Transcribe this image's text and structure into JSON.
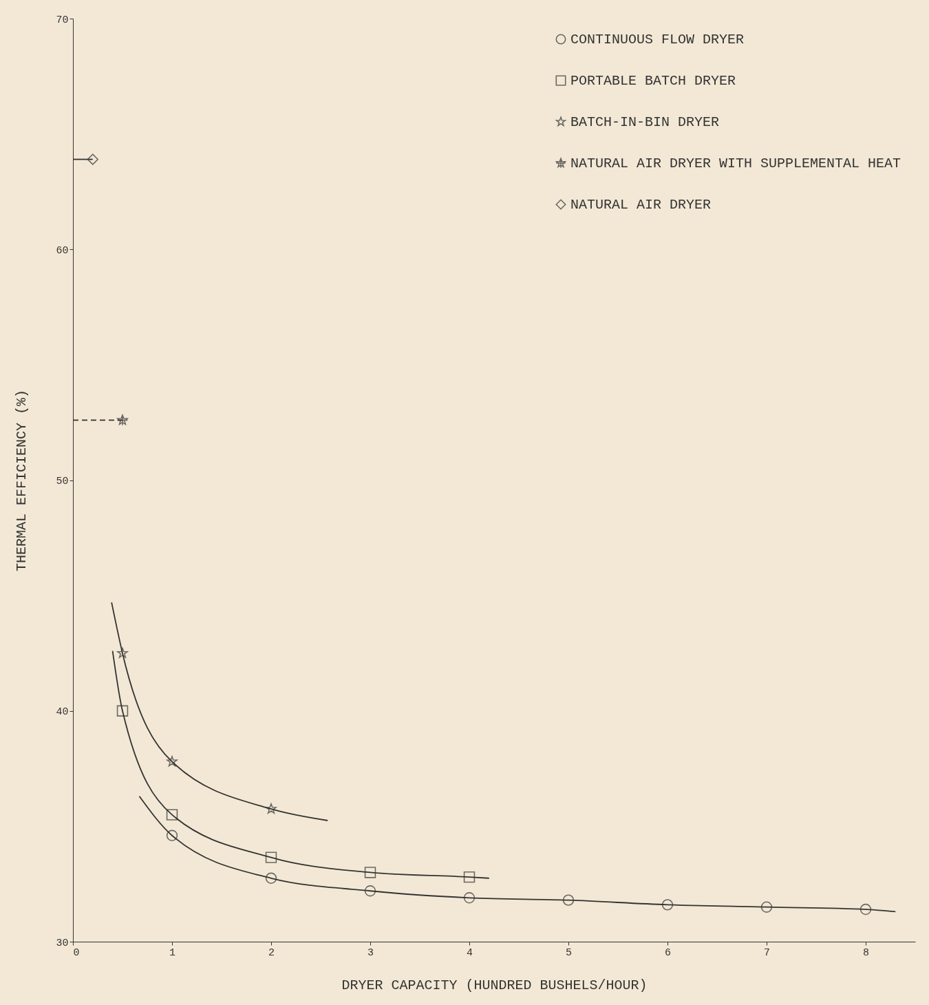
{
  "chart_data": {
    "type": "scatter",
    "xlabel": "DRYER CAPACITY (HUNDRED BUSHELS/HOUR)",
    "ylabel": "THERMAL EFFICIENCY (%)",
    "xlim": [
      0,
      8.5
    ],
    "xticks": [
      0,
      1,
      2,
      3,
      4,
      5,
      6,
      7,
      8
    ],
    "ylim": [
      30,
      70
    ],
    "yticks": [
      30,
      40,
      50,
      60,
      70
    ],
    "grid": false,
    "legend": "top right",
    "series": [
      {
        "name": "CONTINUOUS FLOW DRYER",
        "marker": "circle",
        "color": "#333333",
        "x": [
          1,
          2,
          3,
          4,
          5,
          6,
          7,
          8
        ],
        "values": [
          34.6,
          32.75,
          32.2,
          31.9,
          31.8,
          31.6,
          31.5,
          31.4
        ]
      },
      {
        "name": "PORTABLE BATCH DRYER",
        "marker": "square",
        "color": "#333333",
        "x": [
          0.5,
          1,
          2,
          3,
          4
        ],
        "values": [
          40.0,
          35.5,
          33.65,
          33.0,
          32.8
        ]
      },
      {
        "name": "BATCH-IN-BIN DRYER",
        "marker": "star",
        "color": "#333333",
        "x": [
          0.5,
          1,
          2
        ],
        "values": [
          42.5,
          37.8,
          35.75
        ]
      },
      {
        "name": "NATURAL AIR DRYER WITH SUPPLEMENTAL HEAT",
        "marker": "cross",
        "color": "#333333",
        "x": [
          0.5
        ],
        "values": [
          52.6
        ]
      },
      {
        "name": "NATURAL AIR DRYER",
        "marker": "diamond",
        "color": "#333333",
        "x": [
          0.2
        ],
        "values": [
          63.9
        ]
      },
      {
        "type": "line",
        "line_style": "solid",
        "color": "#333333",
        "x": [
          0.67,
          1,
          2,
          3,
          4,
          5,
          6,
          7,
          8,
          8.3
        ],
        "values": [
          36.3,
          34.6,
          32.75,
          32.2,
          31.9,
          31.8,
          31.6,
          31.5,
          31.4,
          31.3
        ]
      },
      {
        "type": "line",
        "line_style": "solid",
        "color": "#333333",
        "x": [
          0.4,
          0.5,
          1,
          2,
          3,
          4,
          4.2
        ],
        "values": [
          42.6,
          40.0,
          35.5,
          33.65,
          33.0,
          32.8,
          32.75
        ]
      },
      {
        "type": "line",
        "line_style": "solid",
        "color": "#333333",
        "x": [
          0.39,
          0.5,
          1,
          2,
          2.57
        ],
        "values": [
          44.7,
          42.5,
          37.8,
          35.75,
          35.25
        ]
      },
      {
        "type": "line",
        "line_style": "dashed",
        "color": "#333333",
        "x": [
          0,
          0.5
        ],
        "values": [
          52.6,
          52.6
        ]
      },
      {
        "type": "line",
        "line_style": "solid",
        "color": "#333333",
        "x": [
          0,
          0.2
        ],
        "values": [
          63.9,
          63.9
        ]
      }
    ]
  }
}
